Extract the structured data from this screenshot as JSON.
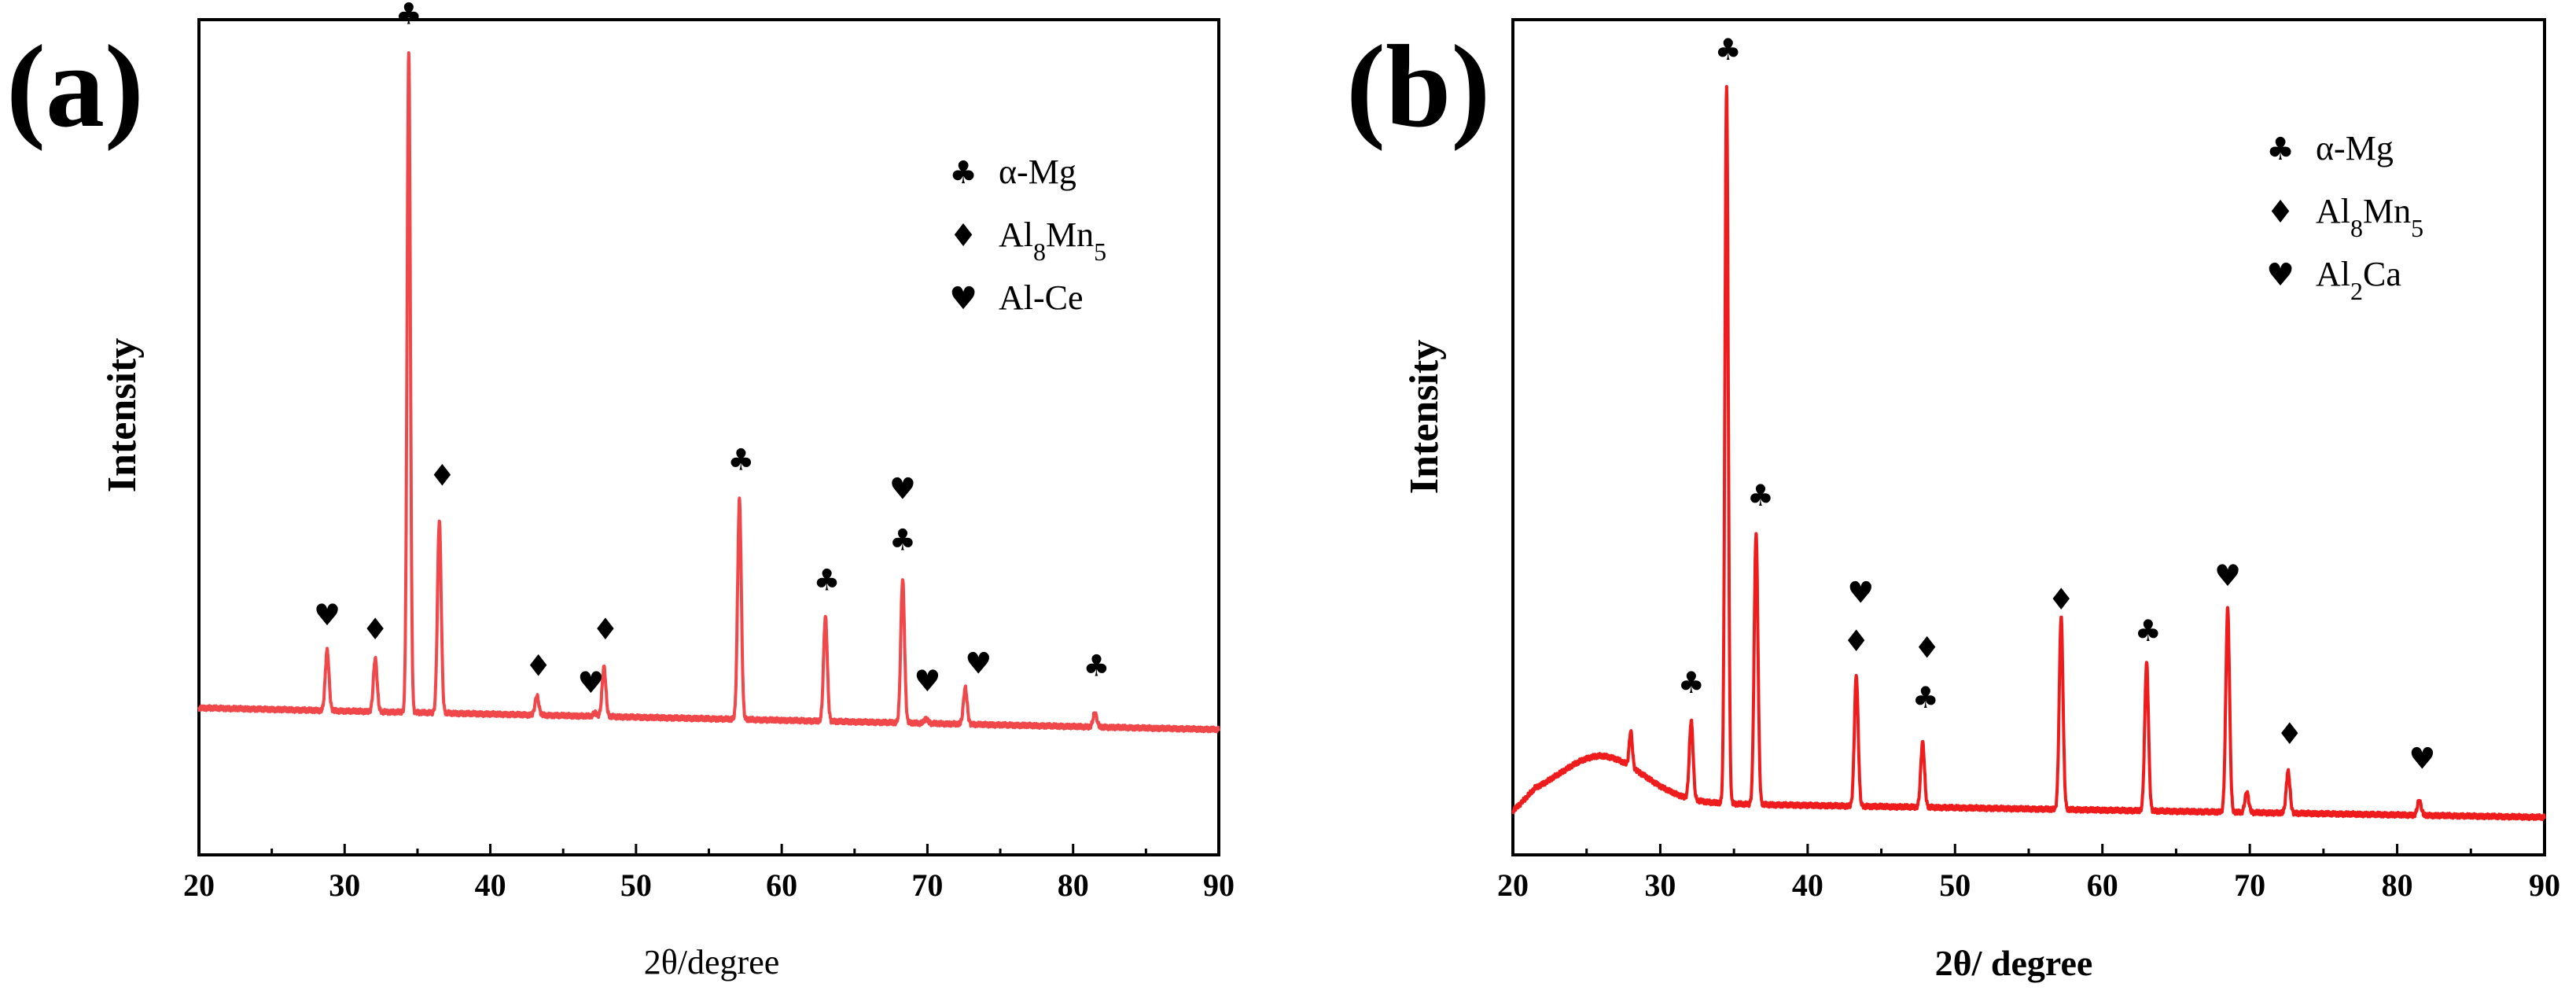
{
  "chart_data": [
    {
      "type": "line",
      "panel_label": "(a)",
      "xlabel": "2θ/degree",
      "ylabel": "Intensity",
      "xlim": [
        20,
        90
      ],
      "ylim": [
        0,
        100
      ],
      "x_ticks": [
        20,
        30,
        40,
        50,
        60,
        70,
        80,
        90
      ],
      "x_tick_labels": [
        "20",
        "30",
        "40",
        "50",
        "60",
        "70",
        "80",
        "90"
      ],
      "line_color": "#f0474a",
      "baseline": {
        "start": 17.6,
        "end": 15.0
      },
      "peaks": [
        {
          "x": 28.8,
          "y": 24.5,
          "w": 0.18
        },
        {
          "x": 32.1,
          "y": 23.5,
          "w": 0.18
        },
        {
          "x": 34.4,
          "y": 96.0,
          "w": 0.16
        },
        {
          "x": 36.5,
          "y": 40.0,
          "w": 0.18
        },
        {
          "x": 43.2,
          "y": 19.0,
          "w": 0.18
        },
        {
          "x": 47.2,
          "y": 17.0,
          "w": 0.18
        },
        {
          "x": 47.8,
          "y": 22.5,
          "w": 0.18
        },
        {
          "x": 57.1,
          "y": 42.5,
          "w": 0.18
        },
        {
          "x": 63.0,
          "y": 28.5,
          "w": 0.18
        },
        {
          "x": 68.3,
          "y": 33.0,
          "w": 0.18
        },
        {
          "x": 69.9,
          "y": 16.3,
          "w": 0.18
        },
        {
          "x": 72.6,
          "y": 20.0,
          "w": 0.18
        },
        {
          "x": 81.5,
          "y": 17.0,
          "w": 0.18
        }
      ],
      "markers": [
        {
          "symbol": "♣",
          "x": 34.4,
          "y": 99.5
        },
        {
          "symbol": "♦",
          "x": 36.7,
          "y": 44.2
        },
        {
          "symbol": "♥",
          "x": 28.8,
          "y": 27.5
        },
        {
          "symbol": "♦",
          "x": 32.1,
          "y": 25.8
        },
        {
          "symbol": "♦",
          "x": 43.3,
          "y": 21.4
        },
        {
          "symbol": "♥",
          "x": 46.9,
          "y": 19.4
        },
        {
          "symbol": "♦",
          "x": 47.9,
          "y": 25.8
        },
        {
          "symbol": "♣",
          "x": 57.2,
          "y": 46.1
        },
        {
          "symbol": "♣",
          "x": 63.1,
          "y": 31.7
        },
        {
          "symbol": "♥",
          "x": 68.3,
          "y": 42.6
        },
        {
          "symbol": "♣",
          "x": 68.3,
          "y": 36.5
        },
        {
          "symbol": "♥",
          "x": 70.0,
          "y": 19.6
        },
        {
          "symbol": "♥",
          "x": 73.5,
          "y": 21.7
        },
        {
          "symbol": "♣",
          "x": 81.6,
          "y": 21.4
        }
      ],
      "legend": [
        {
          "symbol": "♣",
          "label": "α-Mg"
        },
        {
          "symbol": "♦",
          "label": "Al8Mn5",
          "base": "Al",
          "sub1": "8",
          "mid": "Mn",
          "sub2": "5"
        },
        {
          "symbol": "♥",
          "label": "Al-Ce"
        }
      ]
    },
    {
      "type": "line",
      "panel_label": "(b)",
      "xlabel": "2θ/ degree",
      "ylabel": "Intensity",
      "xlim": [
        20,
        90
      ],
      "ylim": [
        0,
        100
      ],
      "x_ticks": [
        20,
        30,
        40,
        50,
        60,
        70,
        80,
        90
      ],
      "x_tick_labels": [
        "20",
        "30",
        "40",
        "50",
        "60",
        "70",
        "80",
        "90"
      ],
      "line_color": "#ee1c1c",
      "baseline": {
        "start": 6.5,
        "end": 4.5
      },
      "hump": {
        "center": 26.0,
        "height": 5.5,
        "width": 4.0
      },
      "peaks": [
        {
          "x": 28.0,
          "y": 10.5,
          "w": 0.15
        },
        {
          "x": 32.1,
          "y": 15.5,
          "w": 0.18
        },
        {
          "x": 34.5,
          "y": 92.0,
          "w": 0.16
        },
        {
          "x": 36.5,
          "y": 38.5,
          "w": 0.18
        },
        {
          "x": 43.3,
          "y": 21.5,
          "w": 0.18
        },
        {
          "x": 47.8,
          "y": 13.5,
          "w": 0.18
        },
        {
          "x": 57.2,
          "y": 28.5,
          "w": 0.18
        },
        {
          "x": 63.0,
          "y": 23.0,
          "w": 0.18
        },
        {
          "x": 68.5,
          "y": 29.5,
          "w": 0.18
        },
        {
          "x": 69.8,
          "y": 7.5,
          "w": 0.18
        },
        {
          "x": 72.6,
          "y": 10.0,
          "w": 0.18
        },
        {
          "x": 81.5,
          "y": 6.5,
          "w": 0.18
        }
      ],
      "markers": [
        {
          "symbol": "♣",
          "x": 34.6,
          "y": 95.2
        },
        {
          "symbol": "♣",
          "x": 36.8,
          "y": 41.8
        },
        {
          "symbol": "♣",
          "x": 32.1,
          "y": 19.4
        },
        {
          "symbol": "♥",
          "x": 43.6,
          "y": 30.2
        },
        {
          "symbol": "♦",
          "x": 43.3,
          "y": 24.4
        },
        {
          "symbol": "♦",
          "x": 48.1,
          "y": 23.6
        },
        {
          "symbol": "♣",
          "x": 48.0,
          "y": 17.6
        },
        {
          "symbol": "♦",
          "x": 57.2,
          "y": 29.4
        },
        {
          "symbol": "♣",
          "x": 63.1,
          "y": 25.6
        },
        {
          "symbol": "♥",
          "x": 68.5,
          "y": 32.2
        },
        {
          "symbol": "♦",
          "x": 72.7,
          "y": 13.3
        },
        {
          "symbol": "♥",
          "x": 81.7,
          "y": 10.3
        }
      ],
      "legend": [
        {
          "symbol": "♣",
          "label": "α-Mg"
        },
        {
          "symbol": "♦",
          "label": "Al8Mn5",
          "base": "Al",
          "sub1": "8",
          "mid": "Mn",
          "sub2": "5"
        },
        {
          "symbol": "♥",
          "label": "Al2Ca",
          "base": "Al",
          "sub1": "2",
          "mid": "Ca",
          "sub2": ""
        }
      ]
    }
  ]
}
